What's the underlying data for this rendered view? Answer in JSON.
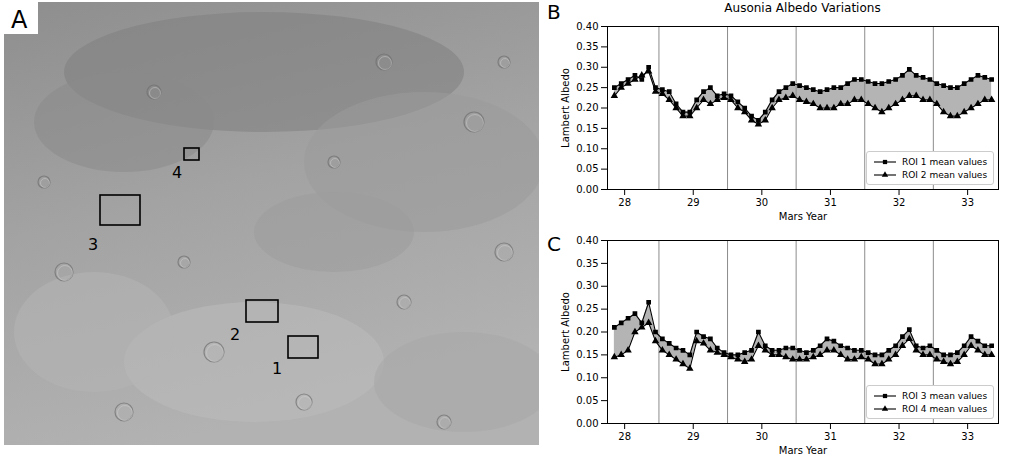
{
  "image_panel": {
    "panel": "A",
    "roi_labels": [
      "1",
      "2",
      "3",
      "4"
    ]
  },
  "chart_data": [
    {
      "type": "line",
      "panel": "B",
      "title": "Ausonia Albedo Variations",
      "xlabel": "Mars Year",
      "ylabel": "Lambert Albedo",
      "x": [
        27.85,
        27.95,
        28.05,
        28.15,
        28.25,
        28.35,
        28.45,
        28.55,
        28.65,
        28.75,
        28.85,
        28.95,
        29.05,
        29.15,
        29.25,
        29.35,
        29.45,
        29.55,
        29.65,
        29.75,
        29.85,
        29.95,
        30.05,
        30.15,
        30.25,
        30.35,
        30.45,
        30.55,
        30.65,
        30.75,
        30.85,
        30.95,
        31.05,
        31.15,
        31.25,
        31.35,
        31.45,
        31.55,
        31.65,
        31.75,
        31.85,
        31.95,
        32.05,
        32.15,
        32.25,
        32.35,
        32.45,
        32.55,
        32.65,
        32.75,
        32.85,
        32.95,
        33.05,
        33.15,
        33.25,
        33.35
      ],
      "series": [
        {
          "name": "ROI 1 mean values",
          "color": "#000000",
          "marker": "square",
          "values": [
            0.25,
            0.26,
            0.27,
            0.28,
            0.27,
            0.3,
            0.25,
            0.245,
            0.24,
            0.21,
            0.19,
            0.19,
            0.22,
            0.24,
            0.25,
            0.23,
            0.235,
            0.23,
            0.215,
            0.2,
            0.18,
            0.17,
            0.19,
            0.22,
            0.24,
            0.25,
            0.26,
            0.255,
            0.25,
            0.245,
            0.24,
            0.245,
            0.25,
            0.25,
            0.26,
            0.27,
            0.27,
            0.265,
            0.26,
            0.26,
            0.265,
            0.27,
            0.28,
            0.295,
            0.28,
            0.275,
            0.27,
            0.26,
            0.255,
            0.25,
            0.25,
            0.26,
            0.27,
            0.28,
            0.275,
            0.27
          ]
        },
        {
          "name": "ROI 2 mean values",
          "color": "#000000",
          "marker": "triangle",
          "values": [
            0.23,
            0.25,
            0.26,
            0.27,
            0.28,
            0.29,
            0.24,
            0.235,
            0.22,
            0.2,
            0.18,
            0.18,
            0.2,
            0.22,
            0.21,
            0.22,
            0.225,
            0.22,
            0.2,
            0.19,
            0.17,
            0.16,
            0.17,
            0.2,
            0.22,
            0.225,
            0.23,
            0.22,
            0.215,
            0.21,
            0.2,
            0.2,
            0.2,
            0.21,
            0.21,
            0.22,
            0.22,
            0.21,
            0.2,
            0.19,
            0.2,
            0.21,
            0.22,
            0.23,
            0.23,
            0.22,
            0.22,
            0.21,
            0.19,
            0.18,
            0.18,
            0.19,
            0.2,
            0.21,
            0.22,
            0.22
          ]
        }
      ],
      "xlim": [
        27.75,
        33.45
      ],
      "xticks": [
        28,
        29,
        30,
        31,
        32,
        33
      ],
      "ylim": [
        0,
        0.4
      ],
      "yticks": [
        {
          "value": 0,
          "label": "0.00"
        },
        {
          "value": 0.05,
          "label": "0.05"
        },
        {
          "value": 0.1,
          "label": "0.10"
        },
        {
          "value": 0.15,
          "label": "0.15"
        },
        {
          "value": 0.2,
          "label": "0.20"
        },
        {
          "value": 0.25,
          "label": "0.25"
        },
        {
          "value": 0.3,
          "label": "0.30"
        },
        {
          "value": 0.35,
          "label": "0.35"
        },
        {
          "value": 0.4,
          "label": "0.40"
        }
      ],
      "vlines": [
        28.5,
        29.5,
        30.5,
        31.5,
        32.5
      ],
      "legend": "lower right",
      "grid": false
    },
    {
      "type": "line",
      "panel": "C",
      "xlabel": "Mars Year",
      "ylabel": "Lambert Albedo",
      "x": [
        27.85,
        27.95,
        28.05,
        28.15,
        28.25,
        28.35,
        28.45,
        28.55,
        28.65,
        28.75,
        28.85,
        28.95,
        29.05,
        29.15,
        29.25,
        29.35,
        29.45,
        29.55,
        29.65,
        29.75,
        29.85,
        29.95,
        30.05,
        30.15,
        30.25,
        30.35,
        30.45,
        30.55,
        30.65,
        30.75,
        30.85,
        30.95,
        31.05,
        31.15,
        31.25,
        31.35,
        31.45,
        31.55,
        31.65,
        31.75,
        31.85,
        31.95,
        32.05,
        32.15,
        32.25,
        32.35,
        32.45,
        32.55,
        32.65,
        32.75,
        32.85,
        32.95,
        33.05,
        33.15,
        33.25,
        33.35
      ],
      "series": [
        {
          "name": "ROI 3 mean values",
          "color": "#000000",
          "marker": "square",
          "values": [
            0.21,
            0.22,
            0.23,
            0.24,
            0.22,
            0.265,
            0.2,
            0.185,
            0.175,
            0.165,
            0.16,
            0.15,
            0.2,
            0.19,
            0.185,
            0.165,
            0.155,
            0.15,
            0.15,
            0.155,
            0.16,
            0.2,
            0.17,
            0.16,
            0.16,
            0.165,
            0.165,
            0.16,
            0.155,
            0.16,
            0.17,
            0.185,
            0.18,
            0.17,
            0.165,
            0.16,
            0.16,
            0.155,
            0.15,
            0.15,
            0.16,
            0.17,
            0.19,
            0.205,
            0.17,
            0.165,
            0.17,
            0.16,
            0.15,
            0.15,
            0.155,
            0.17,
            0.19,
            0.18,
            0.17,
            0.17
          ]
        },
        {
          "name": "ROI 4 mean values",
          "color": "#000000",
          "marker": "triangle",
          "values": [
            0.145,
            0.15,
            0.16,
            0.2,
            0.21,
            0.22,
            0.18,
            0.16,
            0.15,
            0.14,
            0.13,
            0.12,
            0.18,
            0.175,
            0.16,
            0.155,
            0.15,
            0.145,
            0.14,
            0.135,
            0.14,
            0.17,
            0.16,
            0.15,
            0.15,
            0.145,
            0.14,
            0.14,
            0.14,
            0.145,
            0.15,
            0.16,
            0.16,
            0.15,
            0.14,
            0.14,
            0.145,
            0.14,
            0.13,
            0.13,
            0.14,
            0.15,
            0.17,
            0.185,
            0.16,
            0.15,
            0.15,
            0.14,
            0.135,
            0.13,
            0.135,
            0.15,
            0.17,
            0.16,
            0.15,
            0.15
          ]
        }
      ],
      "xlim": [
        27.75,
        33.45
      ],
      "xticks": [
        28,
        29,
        30,
        31,
        32,
        33
      ],
      "ylim": [
        0,
        0.4
      ],
      "yticks": [
        {
          "value": 0,
          "label": "0.00"
        },
        {
          "value": 0.05,
          "label": "0.05"
        },
        {
          "value": 0.1,
          "label": "0.10"
        },
        {
          "value": 0.15,
          "label": "0.15"
        },
        {
          "value": 0.2,
          "label": "0.20"
        },
        {
          "value": 0.25,
          "label": "0.25"
        },
        {
          "value": 0.3,
          "label": "0.30"
        },
        {
          "value": 0.35,
          "label": "0.35"
        },
        {
          "value": 0.4,
          "label": "0.40"
        }
      ],
      "vlines": [
        28.5,
        29.5,
        30.5,
        31.5,
        32.5
      ],
      "legend": "lower right",
      "grid": false
    }
  ]
}
